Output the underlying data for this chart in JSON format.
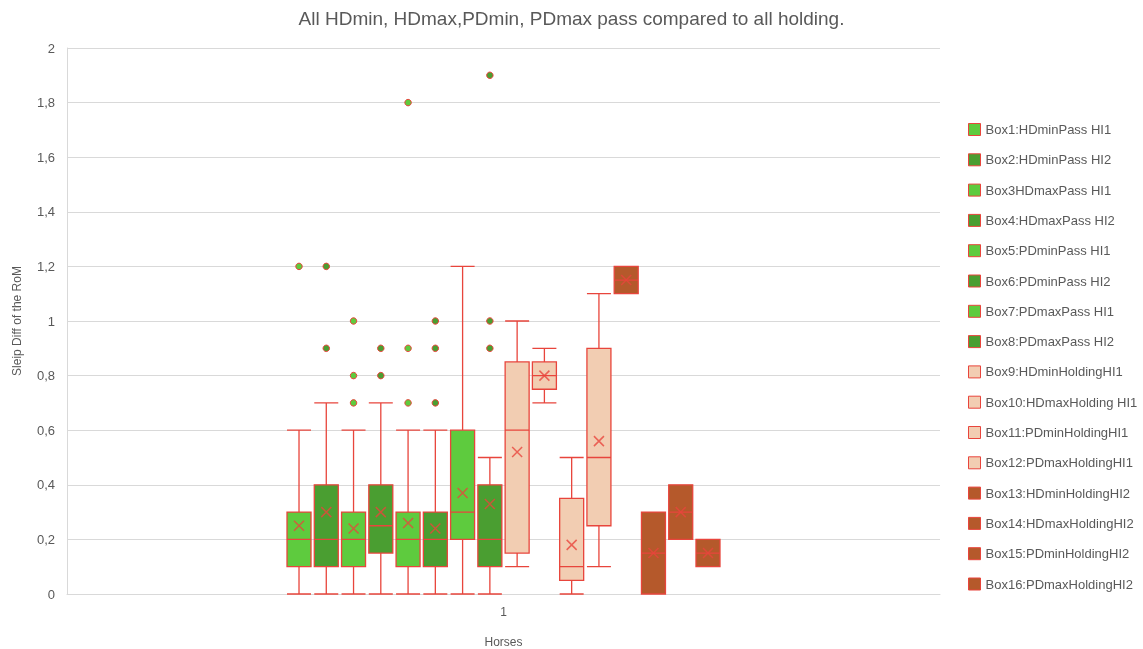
{
  "chart_data": {
    "type": "box",
    "title": "All HDmin, HDmax,PDmin, PDmax pass compared to all holding.",
    "xlabel": "Horses",
    "ylabel": "Sleip Diff of the RoM",
    "categories": [
      "1"
    ],
    "ylim": [
      0,
      2
    ],
    "yticks": [
      0,
      {
        "value": 0.2,
        "label": "0,2"
      },
      {
        "value": 0.4,
        "label": "0,4"
      },
      {
        "value": 0.6,
        "label": "0,6"
      },
      {
        "value": 0.8,
        "label": "0,8"
      },
      1,
      {
        "value": 1.2,
        "label": "1,2"
      },
      {
        "value": 1.4,
        "label": "1,4"
      },
      {
        "value": 1.6,
        "label": "1,6"
      },
      {
        "value": 1.8,
        "label": "1,8"
      },
      2
    ],
    "grid": "y",
    "legend": "right",
    "series": [
      {
        "name": "Box1:HDminPass HI1",
        "color": "#5ecb3e",
        "boxes": [
          {
            "low": 0,
            "q1": 0.1,
            "median": 0.2,
            "q3": 0.3,
            "high": 0.6,
            "mean": 0.25,
            "outliers": [
              1.2
            ]
          }
        ]
      },
      {
        "name": "Box2:HDminPass HI2",
        "color": "#4a9e31",
        "boxes": [
          {
            "low": 0,
            "q1": 0.1,
            "median": 0.2,
            "q3": 0.4,
            "high": 0.7,
            "mean": 0.3,
            "outliers": [
              0.9,
              1.2
            ]
          }
        ]
      },
      {
        "name": "Box3HDmaxPass HI1",
        "color": "#5ecb3e",
        "boxes": [
          {
            "low": 0,
            "q1": 0.1,
            "median": 0.2,
            "q3": 0.3,
            "high": 0.6,
            "mean": 0.24,
            "outliers": [
              0.7,
              0.8,
              1.0
            ]
          }
        ]
      },
      {
        "name": "Box4:HDmaxPass HI2",
        "color": "#4a9e31",
        "boxes": [
          {
            "low": 0,
            "q1": 0.15,
            "median": 0.25,
            "q3": 0.4,
            "high": 0.7,
            "mean": 0.3,
            "outliers": [
              0.8,
              0.9
            ]
          }
        ]
      },
      {
        "name": "Box5:PDminPass HI1",
        "color": "#5ecb3e",
        "boxes": [
          {
            "low": 0,
            "q1": 0.1,
            "median": 0.2,
            "q3": 0.3,
            "high": 0.6,
            "mean": 0.26,
            "outliers": [
              0.7,
              0.9,
              1.8
            ]
          }
        ]
      },
      {
        "name": "Box6:PDminPass HI2",
        "color": "#4a9e31",
        "boxes": [
          {
            "low": 0,
            "q1": 0.1,
            "median": 0.2,
            "q3": 0.3,
            "high": 0.6,
            "mean": 0.24,
            "outliers": [
              0.7,
              0.9,
              1.0
            ]
          }
        ]
      },
      {
        "name": "Box7:PDmaxPass HI1",
        "color": "#5ecb3e",
        "boxes": [
          {
            "low": 0,
            "q1": 0.2,
            "median": 0.3,
            "q3": 0.6,
            "high": 1.2,
            "mean": 0.37
          }
        ]
      },
      {
        "name": "Box8:PDmaxPass HI2",
        "color": "#4a9e31",
        "boxes": [
          {
            "low": 0,
            "q1": 0.1,
            "median": 0.2,
            "q3": 0.4,
            "high": 0.5,
            "mean": 0.33,
            "outliers": [
              0.9,
              1.0,
              1.9
            ]
          }
        ]
      },
      {
        "name": "Box9:HDminHoldingHI1",
        "color": "#f2cdb2",
        "boxes": [
          {
            "low": 0.1,
            "q1": 0.15,
            "median": 0.6,
            "q3": 0.85,
            "high": 1.0,
            "mean": 0.52
          }
        ]
      },
      {
        "name": "Box10:HDmaxHolding HI1",
        "color": "#f2cdb2",
        "boxes": [
          {
            "low": 0.7,
            "q1": 0.75,
            "median": 0.8,
            "q3": 0.85,
            "high": 0.9,
            "mean": 0.8
          }
        ]
      },
      {
        "name": "Box11:PDminHoldingHI1",
        "color": "#f2cdb2",
        "boxes": [
          {
            "low": 0,
            "q1": 0.05,
            "median": 0.1,
            "q3": 0.35,
            "high": 0.5,
            "mean": 0.18
          }
        ]
      },
      {
        "name": "Box12:PDmaxHoldingHI1",
        "color": "#f2cdb2",
        "boxes": [
          {
            "low": 0.1,
            "q1": 0.25,
            "median": 0.5,
            "q3": 0.9,
            "high": 1.1,
            "mean": 0.56
          }
        ]
      },
      {
        "name": "Box13:HDminHoldingHI2",
        "color": "#b5592b",
        "boxes": [
          {
            "low": 1.1,
            "q1": 1.1,
            "median": 1.15,
            "q3": 1.2,
            "high": 1.2,
            "mean": 1.15
          }
        ]
      },
      {
        "name": "Box14:HDmaxHoldingHI2",
        "color": "#b5592b",
        "boxes": [
          {
            "low": 0,
            "q1": 0,
            "median": 0.15,
            "q3": 0.3,
            "high": 0.3,
            "mean": 0.15
          }
        ]
      },
      {
        "name": "Box15:PDminHoldingHI2",
        "color": "#b5592b",
        "boxes": [
          {
            "low": 0.2,
            "q1": 0.2,
            "median": 0.3,
            "q3": 0.4,
            "high": 0.4,
            "mean": 0.3
          }
        ]
      },
      {
        "name": "Box16:PDmaxHoldingHI2",
        "color": "#b5592b",
        "boxes": [
          {
            "low": 0.1,
            "q1": 0.1,
            "median": 0.15,
            "q3": 0.2,
            "high": 0.2,
            "mean": 0.15
          }
        ]
      }
    ]
  }
}
